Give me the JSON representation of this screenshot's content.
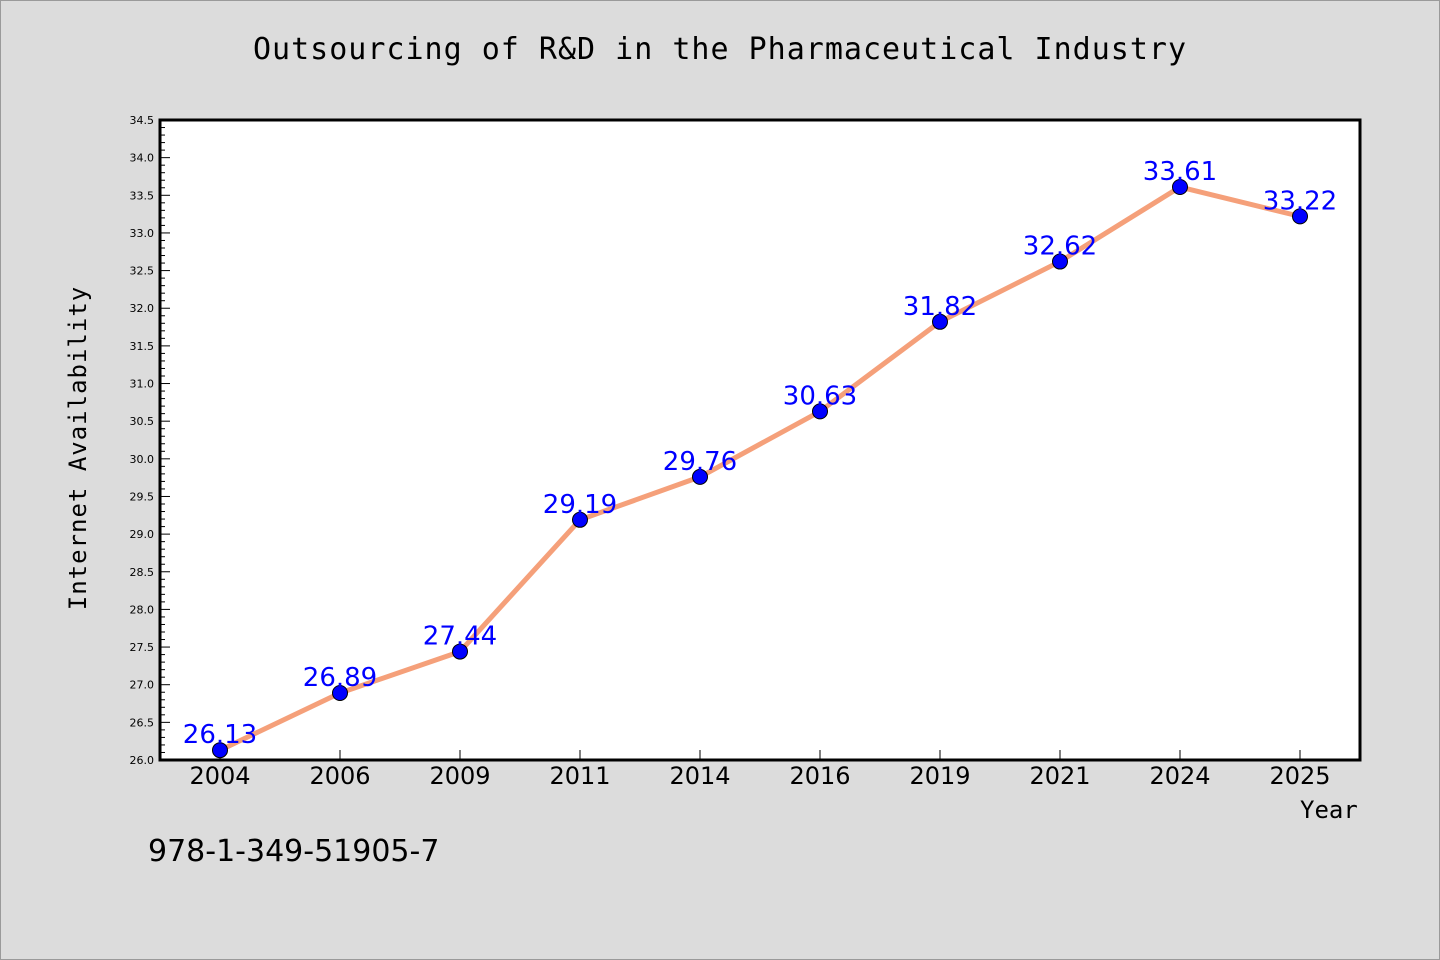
{
  "isbn": "978-1-349-51905-7",
  "chart_data": {
    "type": "line",
    "title": "Outsourcing of R&D in the Pharmaceutical Industry",
    "xlabel": "Year",
    "ylabel": "Internet Availability",
    "categories": [
      "2004",
      "2006",
      "2009",
      "2011",
      "2014",
      "2016",
      "2019",
      "2021",
      "2024",
      "2025"
    ],
    "values": [
      26.13,
      26.89,
      27.44,
      29.19,
      29.76,
      30.63,
      31.82,
      32.62,
      33.61,
      33.22
    ],
    "data_labels": [
      "26.13",
      "26.89",
      "27.44",
      "29.19",
      "29.76",
      "30.63",
      "31.82",
      "32.62",
      "33.61",
      "33.22"
    ],
    "y_ticks": [
      "26.0",
      "26.5",
      "27.0",
      "27.5",
      "28.0",
      "28.5",
      "29.0",
      "29.5",
      "30.0",
      "30.5",
      "31.0",
      "31.5",
      "32.0",
      "32.5",
      "33.0",
      "33.5",
      "34.0",
      "34.5"
    ],
    "ylim": [
      26.0,
      34.5
    ],
    "grid": false,
    "line_color": "#f5a07a",
    "marker_color": "#0000ff",
    "label_color": "#0000ff"
  }
}
